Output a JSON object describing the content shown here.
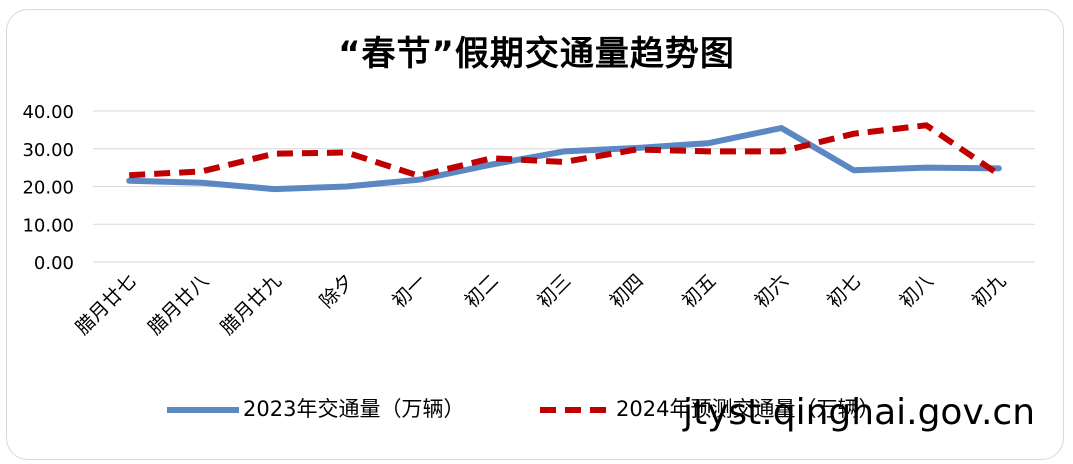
{
  "chart_data": {
    "type": "line",
    "title": "“春节”假期交通量趋势图",
    "categories": [
      "腊月廿七",
      "腊月廿八",
      "腊月廿九",
      "除夕",
      "初一",
      "初二",
      "初三",
      "初四",
      "初五",
      "初六",
      "初七",
      "初八",
      "初九"
    ],
    "series": [
      {
        "name": "2023年交通量（万辆）",
        "color": "#5b87c2",
        "style": "solid",
        "values": [
          21.5,
          21.0,
          19.3,
          20.0,
          21.8,
          25.8,
          29.3,
          30.2,
          31.5,
          35.5,
          24.3,
          25.0,
          24.8
        ]
      },
      {
        "name": "2024年预测交通量（万辆）",
        "color": "#c00000",
        "style": "dashed",
        "values": [
          23.0,
          24.0,
          28.7,
          29.0,
          22.8,
          27.5,
          26.5,
          29.8,
          29.3,
          29.3,
          34.0,
          36.2,
          23.2
        ]
      }
    ],
    "ylim": [
      0,
      40
    ],
    "yticks": [
      "0.00",
      "10.00",
      "20.00",
      "30.00",
      "40.00"
    ],
    "grid": true,
    "legend_position": "bottom"
  },
  "watermark": "jtyst.qinghai.gov.cn"
}
